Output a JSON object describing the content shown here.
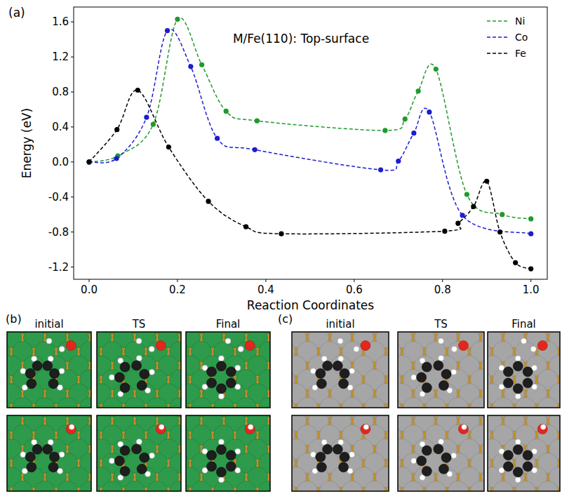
{
  "chart_data": {
    "type": "line",
    "label": "(a)",
    "title": "M/Fe(110): Top-surface",
    "x_label": "Reaction Coordinates",
    "y_label": "Energy (eV)",
    "xlim": [
      -0.035,
      1.037
    ],
    "ylim": [
      -1.34,
      1.77
    ],
    "xticks": [
      {
        "value": 0,
        "label": "0.0"
      },
      0.2,
      0.4,
      0.6,
      0.8,
      {
        "value": 1,
        "label": "1.0"
      }
    ],
    "yticks": [
      -1.2,
      -0.8,
      -0.4,
      {
        "value": 0,
        "label": "0.0"
      },
      0.4,
      0.8,
      1.2,
      1.6
    ],
    "grid": false,
    "legend": "upper right",
    "marker": "circle",
    "line_style": "dashed",
    "series": [
      {
        "name": "Ni",
        "color": "#1f9a2e",
        "x": [
          0,
          0.065,
          0.145,
          0.2,
          0.255,
          0.31,
          0.38,
          0.67,
          0.715,
          0.745,
          0.785,
          0.855,
          0.935,
          1.0
        ],
        "values": [
          0,
          0.07,
          0.43,
          1.63,
          1.11,
          0.58,
          0.47,
          0.36,
          0.49,
          0.81,
          1.06,
          -0.37,
          -0.6,
          -0.65
        ]
      },
      {
        "name": "Co",
        "color": "#1c1cd0",
        "x": [
          0,
          0.062,
          0.13,
          0.177,
          0.23,
          0.29,
          0.375,
          0.66,
          0.7,
          0.735,
          0.77,
          0.845,
          1.0
        ],
        "values": [
          0,
          0.04,
          0.51,
          1.5,
          1.09,
          0.27,
          0.14,
          -0.09,
          0.01,
          0.33,
          0.57,
          -0.61,
          -0.82
        ]
      },
      {
        "name": "Fe",
        "color": "#000000",
        "x": [
          0,
          0.063,
          0.11,
          0.18,
          0.27,
          0.355,
          0.435,
          0.805,
          0.835,
          0.87,
          0.9,
          0.93,
          0.965,
          1.0
        ],
        "values": [
          0,
          0.37,
          0.82,
          0.17,
          -0.45,
          -0.74,
          -0.82,
          -0.79,
          -0.7,
          -0.51,
          -0.22,
          -0.8,
          -1.15,
          -1.22
        ]
      }
    ]
  },
  "structures": [
    {
      "label": "(b)",
      "columns": [
        "initial",
        "TS",
        "Final"
      ]
    },
    {
      "label": "(c)",
      "columns": [
        "initial",
        "TS",
        "Final"
      ]
    }
  ]
}
